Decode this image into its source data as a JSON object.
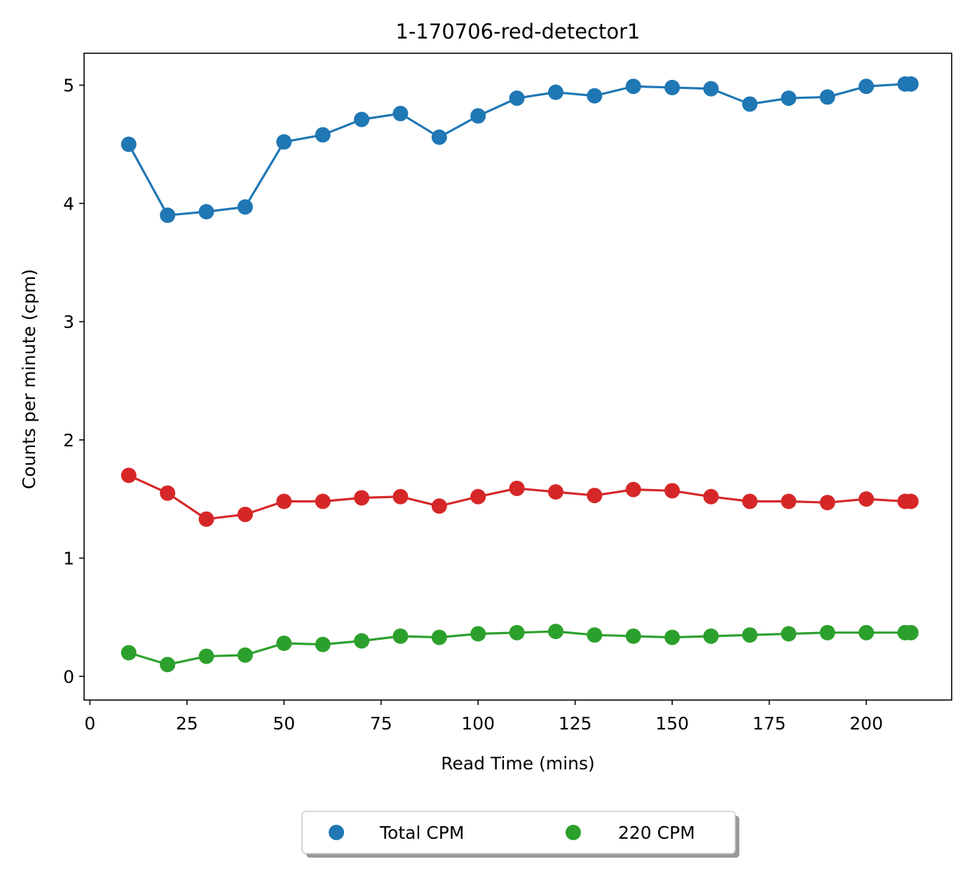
{
  "chart_data": {
    "type": "line",
    "title": "1-170706-red-detector1",
    "xlabel": "Read Time (mins)",
    "ylabel": "Counts per minute (cpm)",
    "xlim": [
      -1.5,
      222
    ],
    "ylim": [
      -0.2,
      5.27
    ],
    "xticks": [
      0,
      25,
      50,
      75,
      100,
      125,
      150,
      175,
      200
    ],
    "yticks": [
      0,
      1,
      2,
      3,
      4,
      5
    ],
    "x": [
      10,
      20,
      30,
      40,
      50,
      60,
      70,
      80,
      90,
      100,
      110,
      120,
      130,
      140,
      150,
      160,
      170,
      180,
      190,
      200,
      210,
      211.5
    ],
    "series": [
      {
        "name": "Total CPM",
        "color": "#1f77b4",
        "values": [
          4.5,
          3.9,
          3.93,
          3.97,
          4.52,
          4.58,
          4.71,
          4.76,
          4.56,
          4.74,
          4.89,
          4.94,
          4.91,
          4.99,
          4.98,
          4.97,
          4.84,
          4.89,
          4.9,
          4.99,
          5.01,
          5.01
        ]
      },
      {
        "color": "#d62728",
        "values": [
          1.7,
          1.55,
          1.33,
          1.37,
          1.48,
          1.48,
          1.51,
          1.52,
          1.44,
          1.52,
          1.59,
          1.56,
          1.53,
          1.58,
          1.57,
          1.52,
          1.48,
          1.48,
          1.47,
          1.5,
          1.48,
          1.48
        ]
      },
      {
        "name": "220 CPM",
        "color": "#2ca02c",
        "values": [
          0.2,
          0.1,
          0.17,
          0.18,
          0.28,
          0.27,
          0.3,
          0.34,
          0.33,
          0.36,
          0.37,
          0.38,
          0.35,
          0.34,
          0.33,
          0.34,
          0.35,
          0.36,
          0.37,
          0.37,
          0.37,
          0.37
        ]
      }
    ],
    "legend": {
      "placement": "bottom-center-outside",
      "entries": [
        {
          "label": "Total CPM",
          "color": "#1f77b4"
        },
        {
          "label": "220 CPM",
          "color": "#2ca02c"
        }
      ]
    },
    "grid": false
  }
}
